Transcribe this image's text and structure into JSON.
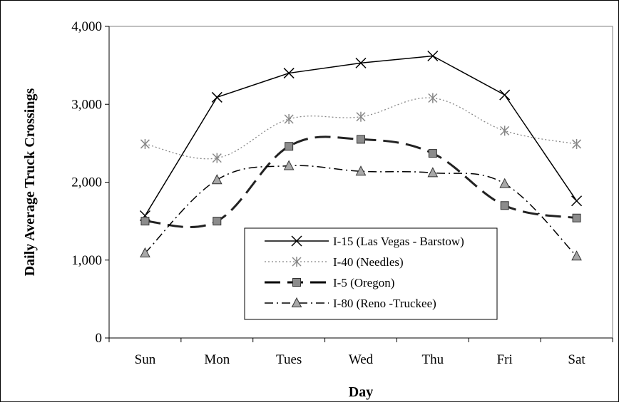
{
  "chart_data": {
    "type": "line",
    "title": "",
    "xlabel": "Day",
    "ylabel": "Daily Average Truck Crossings",
    "categories": [
      "Sun",
      "Mon",
      "Tues",
      "Wed",
      "Thu",
      "Fri",
      "Sat"
    ],
    "ylim": [
      0,
      4000
    ],
    "yticks": [
      0,
      1000,
      2000,
      3000,
      4000
    ],
    "ytick_labels": [
      "0",
      "1,000",
      "2,000",
      "3,000",
      "4,000"
    ],
    "grid": "none",
    "legend_placement": "lower-center",
    "series": [
      {
        "name": "I-15 (Las Vegas - Barstow)",
        "values": [
          1570,
          3090,
          3400,
          3530,
          3620,
          3120,
          1760
        ],
        "line": "solid",
        "marker": "x",
        "color": "#000000"
      },
      {
        "name": "I-40 (Needles)",
        "values": [
          2490,
          2310,
          2810,
          2840,
          3080,
          2660,
          2490
        ],
        "line": "dotted",
        "marker": "asterisk",
        "color": "#808080"
      },
      {
        "name": "I-5 (Oregon)",
        "values": [
          1500,
          1500,
          2460,
          2550,
          2370,
          1700,
          1540
        ],
        "line": "long-dash",
        "marker": "square",
        "color": "#333333"
      },
      {
        "name": "I-80 (Reno -Truckee)",
        "values": [
          1090,
          2030,
          2210,
          2140,
          2120,
          1980,
          1050
        ],
        "line": "dash-dot",
        "marker": "triangle",
        "color": "#000000"
      }
    ]
  }
}
